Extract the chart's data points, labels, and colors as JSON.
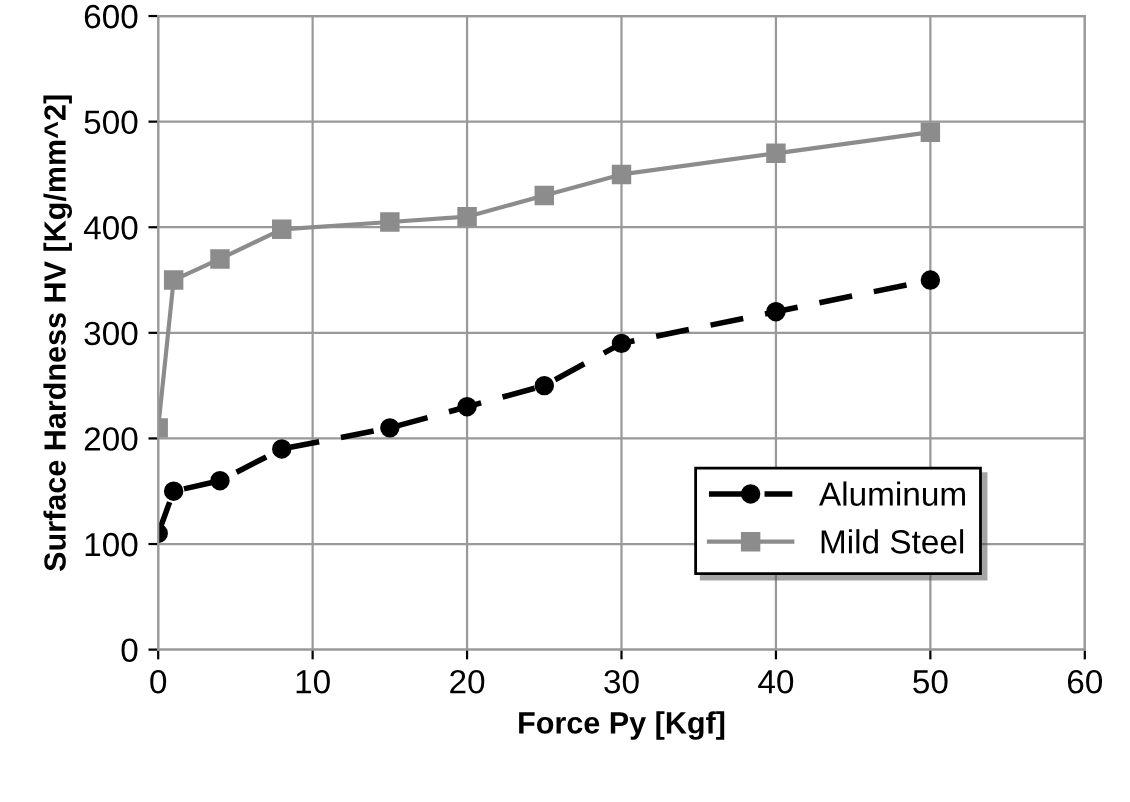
{
  "chart_data": {
    "type": "line",
    "xlabel": "Force Py [Kgf]",
    "ylabel": "Surface Hardness HV [Kg/mm^2]",
    "x": [
      0,
      1,
      4,
      8,
      15,
      20,
      25,
      30,
      40,
      50
    ],
    "series": [
      {
        "name": "Aluminum",
        "color": "#000000",
        "marker": "circle",
        "line_style": "dashed",
        "values": [
          110,
          150,
          160,
          190,
          210,
          230,
          250,
          290,
          320,
          350
        ]
      },
      {
        "name": "Mild Steel",
        "color": "#8c8c8c",
        "marker": "square",
        "line_style": "solid",
        "values": [
          210,
          350,
          370,
          398,
          405,
          410,
          430,
          450,
          470,
          490
        ]
      }
    ],
    "xlim": [
      0,
      60
    ],
    "xticks": [
      0,
      10,
      20,
      30,
      40,
      50,
      60
    ],
    "ylim": [
      0,
      600
    ],
    "yticks": [
      0,
      100,
      200,
      300,
      400,
      500,
      600
    ],
    "grid": true,
    "legend": "bottom right"
  }
}
